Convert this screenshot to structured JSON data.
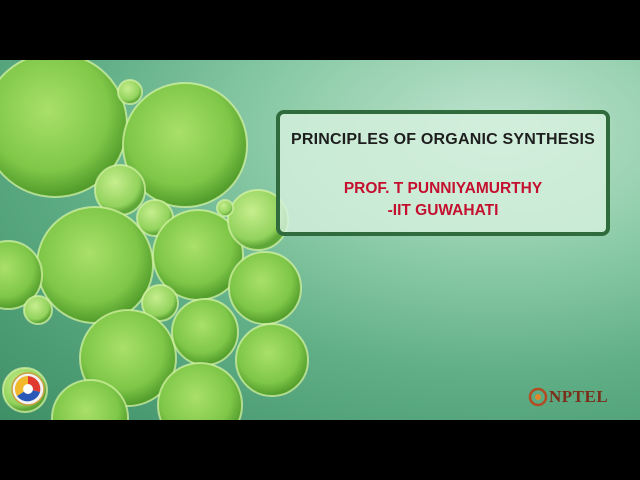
{
  "slide": {
    "course_title": "PRINCIPLES OF ORGANIC SYNTHESIS",
    "instructor_line1": "PROF. T PUNNIYAMURTHY",
    "instructor_line2": "-IIT GUWAHATI"
  },
  "logos": {
    "right_logo_text": "NPTEL",
    "left_logo_icon": "institute-emblem-icon"
  },
  "colors": {
    "title_text": "#1e1e1e",
    "instructor_text": "#c4102f",
    "card_border": "#2f6b3c",
    "nptel_text": "#7a2f1a"
  }
}
